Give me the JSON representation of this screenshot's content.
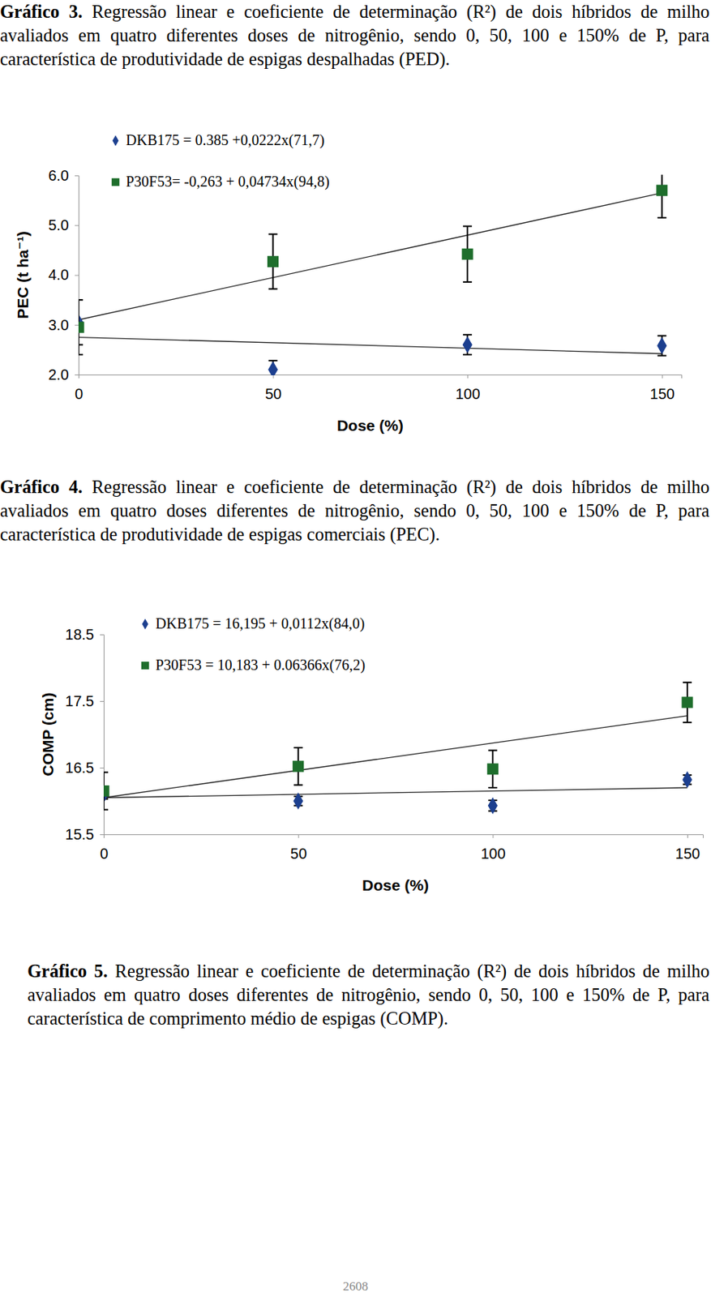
{
  "chart_data": [
    {
      "type": "scatter",
      "x_label": "Dose (%)",
      "y_label": "PEC (t ha⁻¹)",
      "xlim": [
        0,
        155
      ],
      "xticks": [
        0,
        50,
        100,
        150
      ],
      "ylim": [
        2,
        6
      ],
      "yticks": [
        {
          "value": 2,
          "label": "2.0"
        },
        {
          "value": 3,
          "label": "3.0"
        },
        {
          "value": 4,
          "label": "4.0"
        },
        {
          "value": 5,
          "label": "5.0"
        },
        {
          "value": 6,
          "label": "6.0"
        }
      ],
      "grid": false,
      "legend": "top-left",
      "x": [
        0,
        50,
        100,
        150
      ],
      "series": [
        {
          "name": "DKB175 = 0.385 +0,0222x(71,7)",
          "color": "#1c3f8f",
          "marker": "diamond",
          "values": [
            3.05,
            2.1,
            2.6,
            2.58
          ],
          "errors": [
            0.45,
            0.18,
            0.2,
            0.2
          ],
          "trend": {
            "x": [
              0,
              150
            ],
            "values": [
              2.75,
              2.42
            ]
          }
        },
        {
          "name": "P30F53= -0,263 + 0,04734x(94,8)",
          "color": "#1e6e2c",
          "marker": "square",
          "values": [
            2.95,
            4.27,
            4.42,
            5.7
          ],
          "errors": [
            0.55,
            0.55,
            0.56,
            0.55
          ],
          "trend": {
            "x": [
              0,
              150
            ],
            "values": [
              3.1,
              5.65
            ]
          }
        }
      ]
    },
    {
      "type": "scatter",
      "x_label": "Dose (%)",
      "y_label": "COMP (cm)",
      "xlim": [
        0,
        154
      ],
      "xticks": [
        0,
        50,
        100,
        150
      ],
      "ylim": [
        15.5,
        18.5
      ],
      "yticks": [
        15.5,
        16.5,
        17.5,
        18.5
      ],
      "grid": false,
      "legend": "top-left",
      "x": [
        0,
        50,
        100,
        150
      ],
      "series": [
        {
          "name": "DKB175 = 16,195 + 0,0112x(84,0)",
          "color": "#1c3f8f",
          "marker": "diamond",
          "values": [
            16.1,
            16.0,
            15.93,
            16.32
          ],
          "errors": [
            0.07,
            0.07,
            0.08,
            0.07
          ],
          "trend": {
            "x": [
              0,
              150
            ],
            "values": [
              16.05,
              16.2
            ]
          }
        },
        {
          "name": "P30F53 = 10,183 + 0.06366x(76,2)",
          "color": "#1e6e2c",
          "marker": "square",
          "values": [
            16.15,
            16.52,
            16.48,
            17.48
          ],
          "errors": [
            0.28,
            0.28,
            0.28,
            0.3
          ],
          "trend": {
            "x": [
              0,
              150
            ],
            "values": [
              16.05,
              17.28
            ]
          }
        }
      ]
    }
  ],
  "document": {
    "captions": [
      {
        "label": "Gráfico 3.",
        "text": "Regressão linear e coeficiente de determinação (R²) de dois híbridos de milho avaliados em quatro diferentes doses de nitrogênio, sendo 0, 50, 100 e 150% de P, para característica de produtividade de espigas despalhadas (PED)."
      },
      {
        "label": "Gráfico 4.",
        "text": "Regressão linear e coeficiente de determinação (R²) de dois híbridos de milho avaliados em quatro doses diferentes de nitrogênio, sendo 0, 50, 100 e 150% de P, para característica de produtividade de espigas comerciais (PEC)."
      },
      {
        "label": "Gráfico 5.",
        "text": "Regressão linear e coeficiente de determinação (R²) de dois híbridos de milho avaliados em quatro doses diferentes de nitrogênio, sendo 0, 50, 100 e 150% de P, para característica de comprimento médio de espigas (COMP)."
      }
    ],
    "page_number": "2608"
  }
}
